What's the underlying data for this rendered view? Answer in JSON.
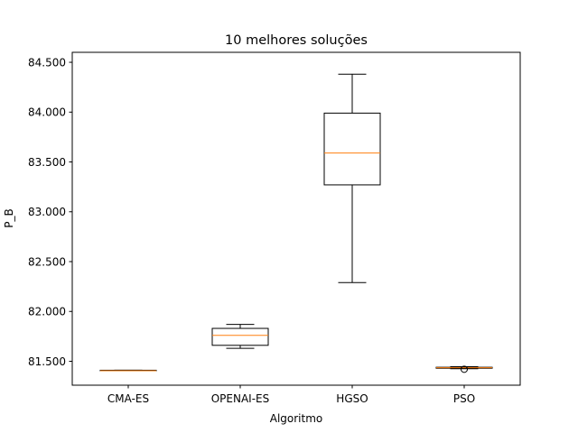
{
  "chart_data": {
    "type": "boxplot",
    "title": "10 melhores soluções",
    "xlabel": "Algoritmo",
    "ylabel": "P_B",
    "ylim": [
      81.26,
      84.6
    ],
    "yticks": [
      81.5,
      82.0,
      82.5,
      83.0,
      83.5,
      84.0,
      84.5
    ],
    "ytick_labels": [
      "81.500",
      "82.000",
      "82.500",
      "83.000",
      "83.500",
      "84.000",
      "84.500"
    ],
    "categories": [
      "CMA-ES",
      "OPENAI-ES",
      "HGSO",
      "PSO"
    ],
    "boxes": [
      {
        "category": "CMA-ES",
        "whisker_low": 81.405,
        "q1": 81.405,
        "median": 81.405,
        "q3": 81.41,
        "whisker_high": 81.41,
        "outliers": []
      },
      {
        "category": "OPENAI-ES",
        "whisker_low": 81.63,
        "q1": 81.66,
        "median": 81.76,
        "q3": 81.83,
        "whisker_high": 81.87,
        "outliers": []
      },
      {
        "category": "HGSO",
        "whisker_low": 82.29,
        "q1": 83.27,
        "median": 83.59,
        "q3": 83.99,
        "whisker_high": 84.38,
        "outliers": []
      },
      {
        "category": "PSO",
        "whisker_low": 81.425,
        "q1": 81.43,
        "median": 81.435,
        "q3": 81.44,
        "whisker_high": 81.445,
        "outliers": [
          81.42
        ]
      }
    ],
    "colors": {
      "box": "#000000",
      "median": "#ff7f0e"
    },
    "grid": false
  }
}
